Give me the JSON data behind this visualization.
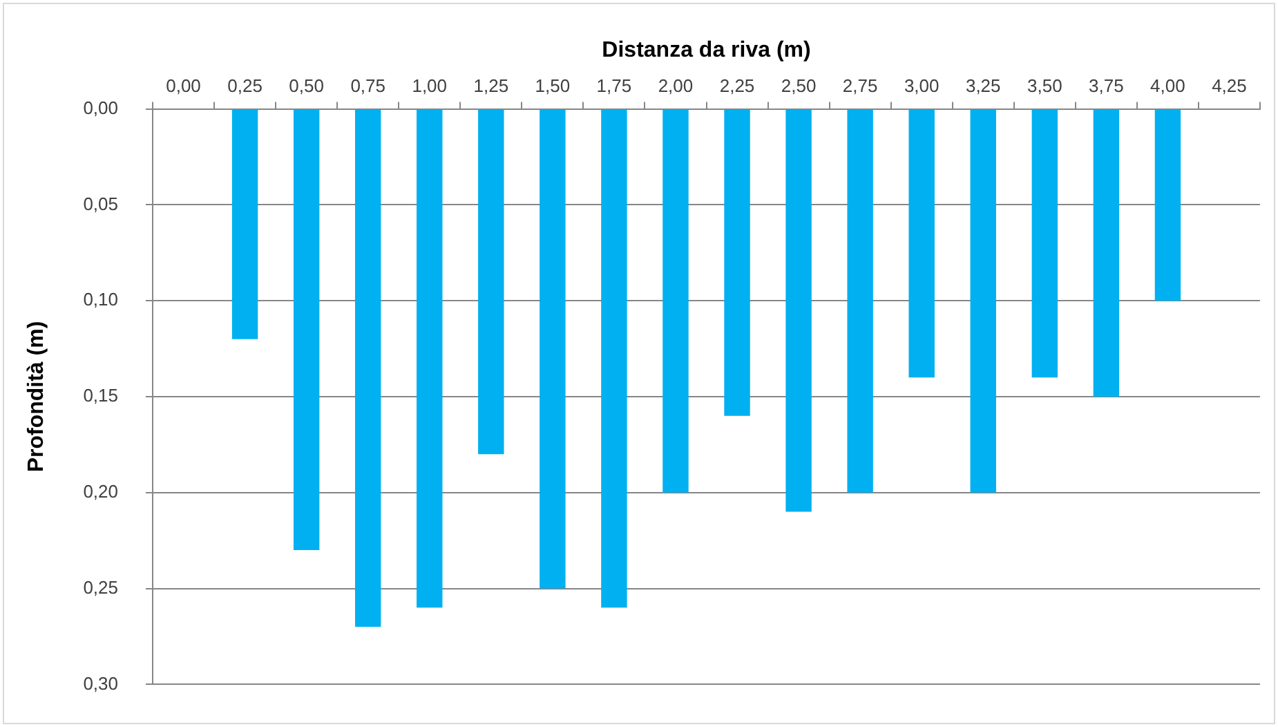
{
  "chart_data": {
    "type": "bar",
    "xlabel": "Distanza da riva (m)",
    "ylabel": "Profondità (m)",
    "categories": [
      "0,00",
      "0,25",
      "0,50",
      "0,75",
      "1,00",
      "1,25",
      "1,50",
      "1,75",
      "2,00",
      "2,25",
      "2,50",
      "2,75",
      "3,00",
      "3,25",
      "3,50",
      "3,75",
      "4,00",
      "4,25"
    ],
    "values": [
      null,
      0.12,
      0.23,
      0.27,
      0.26,
      0.18,
      0.25,
      0.26,
      0.2,
      0.16,
      0.21,
      0.2,
      0.14,
      0.2,
      0.14,
      0.15,
      0.1,
      null
    ],
    "color": "#00b0f0",
    "ylim": [
      0.3,
      0
    ],
    "yticks": [
      {
        "value": 0,
        "label": "0,00"
      },
      {
        "value": 0.05,
        "label": "0,05"
      },
      {
        "value": 0.1,
        "label": "0,10"
      },
      {
        "value": 0.15,
        "label": "0,15"
      },
      {
        "value": 0.2,
        "label": "0,20"
      },
      {
        "value": 0.25,
        "label": "0,25"
      },
      {
        "value": 0.3,
        "label": "0,30"
      }
    ],
    "grid": "y",
    "legend": false
  }
}
